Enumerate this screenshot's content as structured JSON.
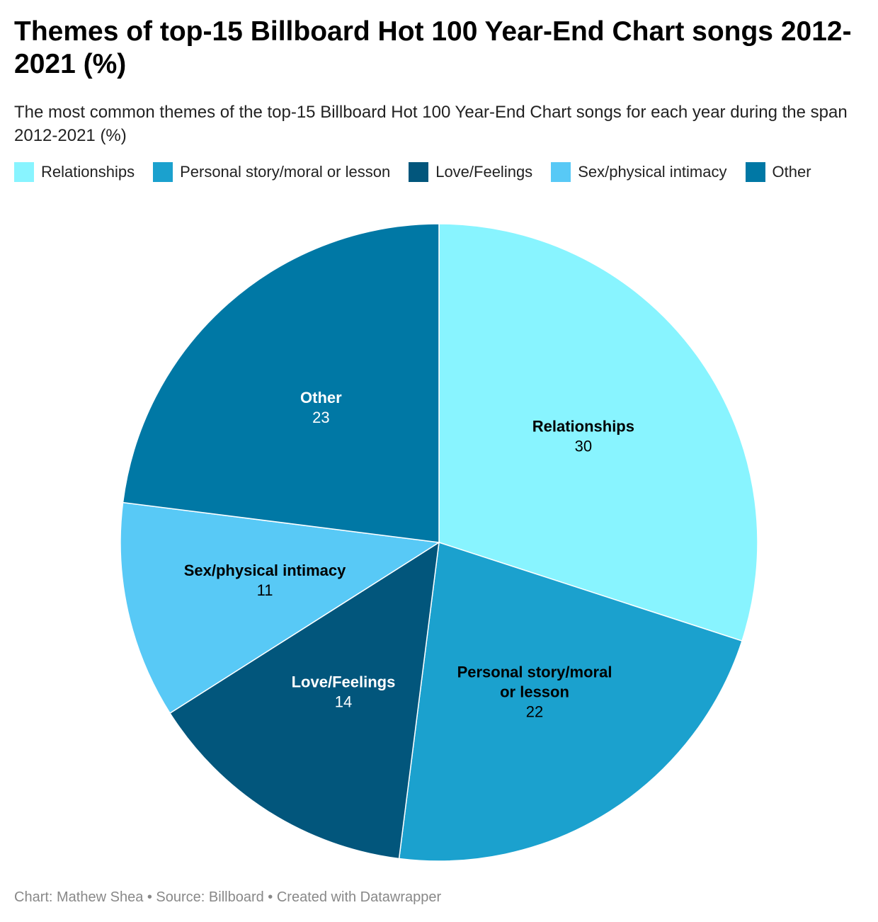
{
  "title": "Themes of top-15 Billboard Hot 100 Year-End Chart songs 2012-2021 (%)",
  "subtitle": "The most common themes of the top-15 Billboard Hot 100 Year-End Chart songs for each year during the span 2012-2021 (%)",
  "footer": "Chart: Mathew Shea • Source: Billboard • Created with Datawrapper",
  "chart_data": {
    "type": "pie",
    "title": "Themes of top-15 Billboard Hot 100 Year-End Chart songs 2012-2021 (%)",
    "legend_position": "top",
    "slices": [
      {
        "label": "Relationships",
        "label_lines": [
          "Relationships"
        ],
        "value": 30,
        "color": "#88f4ff",
        "label_color": "#000000"
      },
      {
        "label": "Personal story/moral or lesson",
        "label_lines": [
          "Personal story/moral",
          "or lesson"
        ],
        "value": 22,
        "color": "#1ba1ce",
        "label_color": "#000000"
      },
      {
        "label": "Love/Feelings",
        "label_lines": [
          "Love/Feelings"
        ],
        "value": 14,
        "color": "#02567c",
        "label_color": "#ffffff"
      },
      {
        "label": "Sex/physical intimacy",
        "label_lines": [
          "Sex/physical intimacy"
        ],
        "value": 11,
        "color": "#58c9f6",
        "label_color": "#000000"
      },
      {
        "label": "Other",
        "label_lines": [
          "Other"
        ],
        "value": 23,
        "color": "#0078a5",
        "label_color": "#ffffff"
      }
    ]
  }
}
